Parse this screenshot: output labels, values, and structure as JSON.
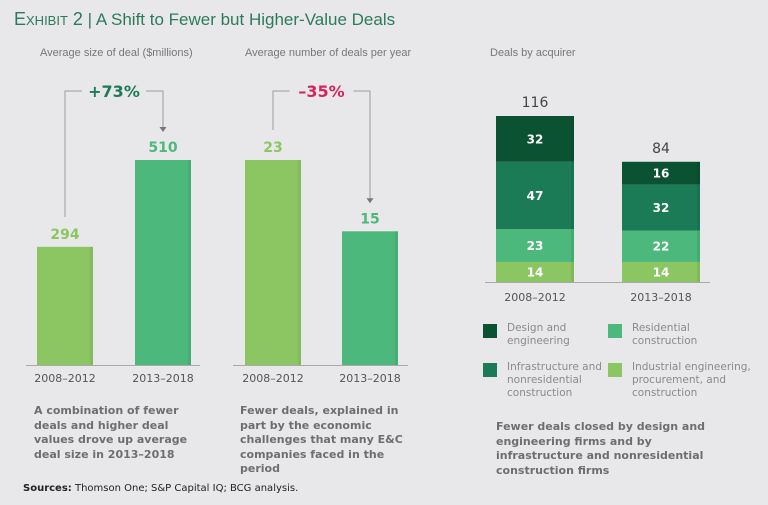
{
  "title": {
    "exhibit": "Exhibit 2",
    "separator": "|",
    "text": "A Shift to Fewer but Higher-Value Deals"
  },
  "colors": {
    "light_green": "#8cc663",
    "mid_green": "#4cb87b",
    "dark_green": "#1b7b57",
    "darkest_green": "#0b5232",
    "increase": "#1e7a56",
    "decrease": "#d6245a"
  },
  "chart_data": [
    {
      "type": "bar",
      "title": "Average size of deal ($millions)",
      "categories": [
        "2008–2012",
        "2013–2018"
      ],
      "values": [
        294,
        510
      ],
      "value_labels": [
        "294",
        "510"
      ],
      "change_label": "+73%",
      "ylim": [
        0,
        560
      ],
      "grid": false,
      "description": "A combination of fewer deals and higher deal values drove up average deal size in 2013–2018"
    },
    {
      "type": "bar",
      "title": "Average number of deals per year",
      "categories": [
        "2008–2012",
        "2013–2018"
      ],
      "values": [
        23,
        15
      ],
      "value_labels": [
        "23",
        "15"
      ],
      "change_label": "–35%",
      "ylim": [
        0,
        25
      ],
      "grid": false,
      "description": "Fewer deals, explained in part by the economic challenges that many E&C companies faced in the period"
    },
    {
      "type": "bar",
      "stacked": true,
      "title": "Deals by acquirer",
      "categories": [
        "2008–2012",
        "2013–2018"
      ],
      "totals": [
        116,
        84
      ],
      "series": [
        {
          "name": "Industrial engineering, procurement, and construction",
          "values": [
            14,
            14
          ],
          "color": "#8cc663"
        },
        {
          "name": "Residential construction",
          "values": [
            23,
            22
          ],
          "color": "#4cb87b"
        },
        {
          "name": "Infrastructure and nonresidential construction",
          "values": [
            47,
            32
          ],
          "color": "#1b7b57"
        },
        {
          "name": "Design and engineering",
          "values": [
            32,
            16
          ],
          "color": "#0b5232"
        }
      ],
      "legend": [
        {
          "label": "Design and engineering",
          "color": "#0b5232"
        },
        {
          "label": "Residential construction",
          "color": "#4cb87b"
        },
        {
          "label": "Infrastructure and nonresidential construction",
          "color": "#1b7b57"
        },
        {
          "label": "Industrial engineering, procurement, and construction",
          "color": "#8cc663"
        }
      ],
      "legend_position": "bottom",
      "ylim": [
        0,
        120
      ],
      "grid": false,
      "description": "Fewer deals closed by design and engineering firms and by infrastructure and nonresidential construction firms"
    }
  ],
  "sources": {
    "label": "Sources:",
    "text": " Thomson One; S&P Capital IQ; BCG analysis."
  }
}
